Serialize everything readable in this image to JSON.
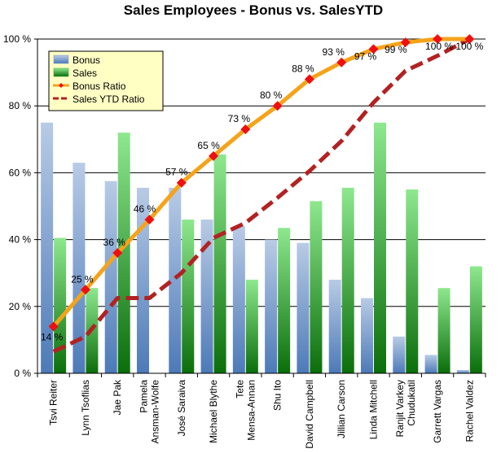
{
  "chart_data": {
    "type": "bar",
    "title": "Sales Employees - Bonus vs. SalesYTD",
    "xlabel": "",
    "ylabel": "",
    "ylim": [
      0,
      100
    ],
    "yticks": [
      0,
      20,
      40,
      60,
      80,
      100
    ],
    "ytick_labels": [
      "0 %",
      "20 %",
      "40 %",
      "60 %",
      "80 %",
      "100 %"
    ],
    "grid": true,
    "legend_position": "top-left",
    "categories": [
      [
        "Tsvi Reiter"
      ],
      [
        "Lynn Tsoflias"
      ],
      [
        "Jae Pak"
      ],
      [
        "Pamela",
        "Ansman-Wolfe"
      ],
      [
        "José Saraiva"
      ],
      [
        "Michael Blythe"
      ],
      [
        "Tete",
        "Mensa-Annan"
      ],
      [
        "Shu Ito"
      ],
      [
        "David Campbell"
      ],
      [
        "Jillian Carson"
      ],
      [
        "Linda Mitchell"
      ],
      [
        "Ranjit Varkey",
        "Chudukatil"
      ],
      [
        "Garrett Vargas"
      ],
      [
        "Rachel Valdez"
      ]
    ],
    "series": [
      {
        "name": "Bonus",
        "kind": "bar",
        "color": "#6f95c8",
        "values": [
          75,
          63,
          57.5,
          55.5,
          55.5,
          46,
          44,
          40,
          39,
          28,
          22.5,
          11,
          5.5,
          1
        ]
      },
      {
        "name": "Sales",
        "kind": "bar",
        "color": "#2aa52a",
        "values": [
          40.5,
          25.5,
          72,
          0,
          46,
          65.5,
          28,
          43.5,
          51.5,
          55.5,
          75,
          55,
          25.5,
          32
        ]
      },
      {
        "name": "Bonus Ratio",
        "kind": "line",
        "color": "#f5a31a",
        "marker_color": "#ee1010",
        "values": [
          14,
          25,
          36,
          46,
          57,
          65,
          73,
          80,
          88,
          93,
          97,
          99,
          100,
          100
        ],
        "labels": [
          "14 %",
          "25 %",
          "36 %",
          "46 %",
          "57 %",
          "65 %",
          "73 %",
          "80 %",
          "88 %",
          "93 %",
          "97 %",
          "99 %",
          "100 %",
          "100 %"
        ]
      },
      {
        "name": "Sales YTD Ratio",
        "kind": "dashed-line",
        "color": "#b22222",
        "values": [
          6.5,
          11,
          22.5,
          22.5,
          30,
          40.5,
          45,
          52.5,
          60.5,
          69.5,
          81,
          90.5,
          95,
          100
        ]
      }
    ]
  }
}
